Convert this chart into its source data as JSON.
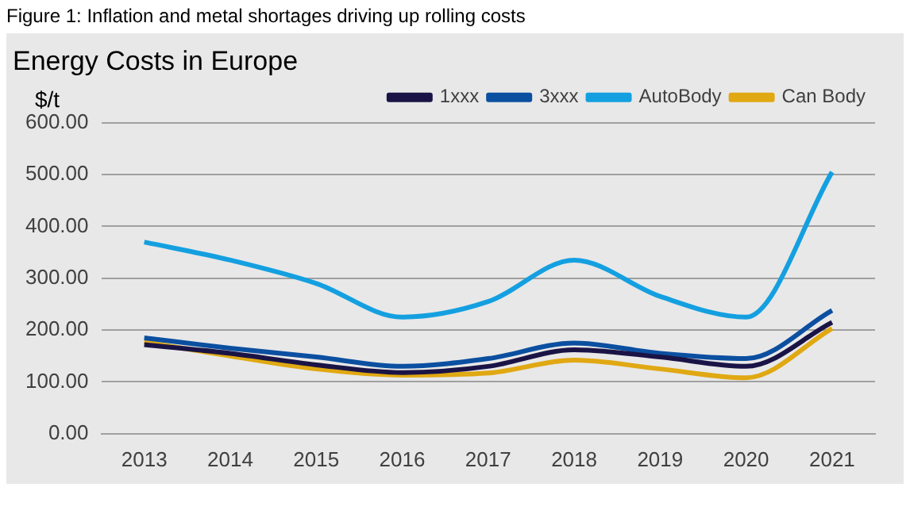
{
  "chart_data": {
    "type": "line",
    "title": "Figure 1: Inflation and metal shortages driving up rolling costs",
    "subtitle": "Energy Costs in Europe",
    "ylabel": "$/t",
    "categories": [
      "2013",
      "2014",
      "2015",
      "2016",
      "2017",
      "2018",
      "2019",
      "2020",
      "2021"
    ],
    "series": [
      {
        "name": "1xxx",
        "color": "#1a1446",
        "values": [
          172,
          155,
          133,
          118,
          130,
          162,
          148,
          130,
          215
        ]
      },
      {
        "name": "3xxx",
        "color": "#0b4fa0",
        "values": [
          185,
          165,
          148,
          130,
          145,
          175,
          155,
          145,
          238
        ]
      },
      {
        "name": "AutoBody",
        "color": "#14a0e0",
        "values": [
          370,
          335,
          290,
          225,
          255,
          335,
          265,
          225,
          505
        ]
      },
      {
        "name": "Can Body",
        "color": "#e0a812",
        "values": [
          177,
          150,
          125,
          113,
          117,
          142,
          125,
          108,
          203
        ]
      }
    ],
    "ylim": [
      0,
      600
    ],
    "yticks": [
      {
        "value": 0,
        "label": "0.00"
      },
      {
        "value": 100,
        "label": "100.00"
      },
      {
        "value": 200,
        "label": "200.00"
      },
      {
        "value": 300,
        "label": "300.00"
      },
      {
        "value": 400,
        "label": "400.00"
      },
      {
        "value": 500,
        "label": "500.00"
      },
      {
        "value": 600,
        "label": "600.00"
      }
    ],
    "grid": "y",
    "legend": "top right",
    "marker": "none",
    "line_style": "solid"
  }
}
